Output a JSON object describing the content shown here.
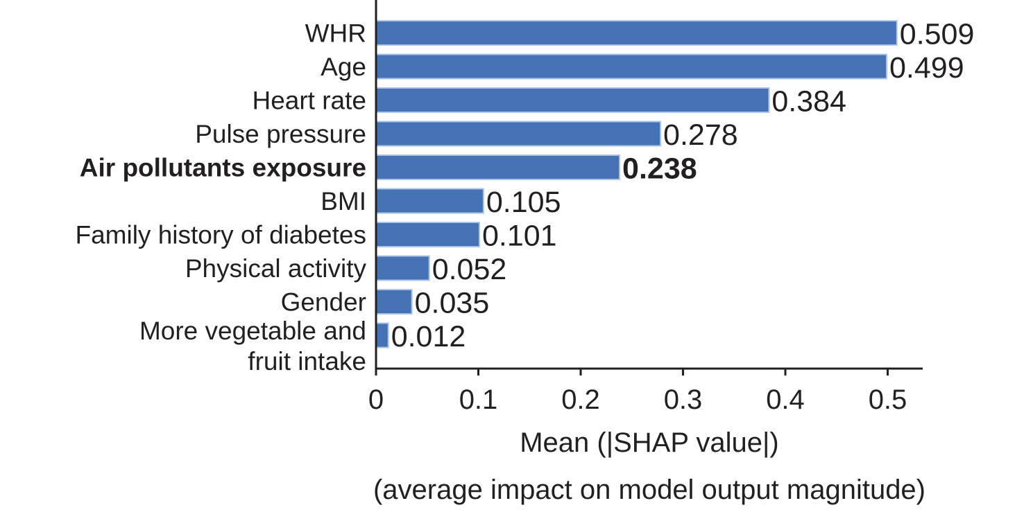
{
  "chart_data": {
    "type": "bar",
    "orientation": "horizontal",
    "categories": [
      "WHR",
      "Age",
      "Heart rate",
      "Pulse pressure",
      "Air pollutants exposure",
      "BMI",
      "Family history of diabetes",
      "Physical activity",
      "Gender",
      "More vegetable and fruit intake"
    ],
    "category_lines": [
      [
        "WHR"
      ],
      [
        "Age"
      ],
      [
        "Heart rate"
      ],
      [
        "Pulse pressure"
      ],
      [
        "Air pollutants exposure"
      ],
      [
        "BMI"
      ],
      [
        "Family history of diabetes"
      ],
      [
        "Physical activity"
      ],
      [
        "Gender"
      ],
      [
        "More vegetable and",
        "fruit intake"
      ]
    ],
    "values": [
      0.509,
      0.499,
      0.384,
      0.278,
      0.238,
      0.105,
      0.101,
      0.052,
      0.035,
      0.012
    ],
    "value_labels": [
      "0.509",
      "0.499",
      "0.384",
      "0.278",
      "0.238",
      "0.105",
      "0.101",
      "0.052",
      "0.035",
      "0.012"
    ],
    "highlight_index": 4,
    "xlim": [
      0,
      0.54
    ],
    "xticks": [
      0,
      0.1,
      0.2,
      0.3,
      0.4,
      0.5
    ],
    "xtick_labels": [
      "0",
      "0.1",
      "0.2",
      "0.3",
      "0.4",
      "0.5"
    ],
    "xlabel": "Mean (|SHAP value|)",
    "xlabel_sub": "(average impact on model output magnitude)",
    "title": "",
    "grid": false,
    "bar_color": "#4472b4",
    "bar_edge_color": "#a9c4e8",
    "text_color": "#231f20"
  }
}
